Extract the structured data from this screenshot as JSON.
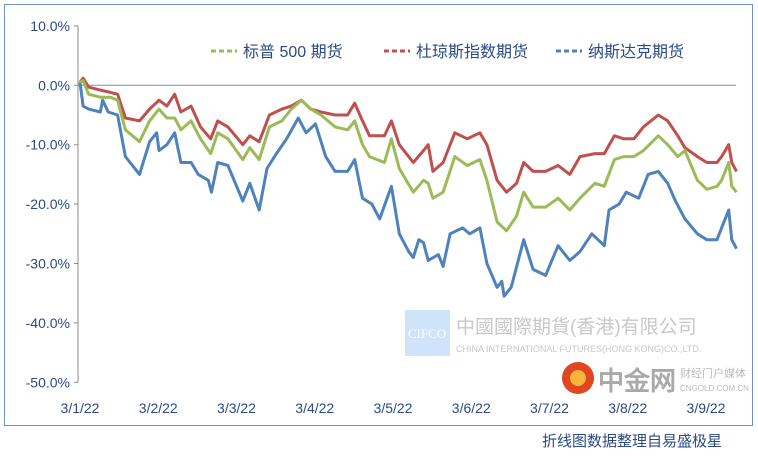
{
  "chart_data": {
    "type": "line",
    "title": "",
    "xlabel": "",
    "ylabel": "",
    "ylim": [
      -50,
      10
    ],
    "yticks": [
      "10.0%",
      "0.0%",
      "-10.0%",
      "-20.0%",
      "-30.0%",
      "-40.0%",
      "-50.0%"
    ],
    "ytick_values": [
      10,
      0,
      -10,
      -20,
      -30,
      -40,
      -50
    ],
    "xticks": [
      "3/1/22",
      "3/2/22",
      "3/3/22",
      "3/4/22",
      "3/5/22",
      "3/6/22",
      "3/7/22",
      "3/8/22",
      "3/9/22"
    ],
    "x_unit": "months since 3/1/22",
    "legend_position": "top-right",
    "series": [
      {
        "name": "标普 500 期货",
        "color": "#9BBB59",
        "x": [
          0,
          0.04,
          0.11,
          0.26,
          0.39,
          0.48,
          0.58,
          0.76,
          0.89,
          1.01,
          1.11,
          1.21,
          1.29,
          1.42,
          1.54,
          1.67,
          1.76,
          1.89,
          2.08,
          2.17,
          2.29,
          2.42,
          2.58,
          2.7,
          2.83,
          2.95,
          3.08,
          3.26,
          3.42,
          3.51,
          3.61,
          3.7,
          3.89,
          3.98,
          4.08,
          4.26,
          4.39,
          4.45,
          4.51,
          4.64,
          4.79,
          4.95,
          5.11,
          5.2,
          5.33,
          5.45,
          5.58,
          5.67,
          5.79,
          5.95,
          6.11,
          6.26,
          6.39,
          6.58,
          6.7,
          6.83,
          6.95,
          7.08,
          7.2,
          7.39,
          7.51,
          7.64,
          7.73,
          7.89,
          8.01,
          8.14,
          8.2,
          8.29,
          8.33,
          8.39
        ],
        "values": [
          0.5,
          0.8,
          -1.5,
          -2,
          -2,
          -2.5,
          -7.5,
          -9.5,
          -6,
          -4,
          -5.5,
          -5.5,
          -7.5,
          -6,
          -9,
          -11.5,
          -8,
          -9,
          -12.5,
          -10.5,
          -12.5,
          -7,
          -6,
          -4,
          -2.5,
          -4,
          -5,
          -7,
          -7.5,
          -6,
          -10,
          -12,
          -13,
          -9,
          -14,
          -18,
          -16,
          -16.5,
          -19,
          -18,
          -12,
          -13.5,
          -12.5,
          -16,
          -23,
          -24.5,
          -22,
          -18,
          -20.5,
          -20.5,
          -19,
          -21,
          -19,
          -16.5,
          -17,
          -12.5,
          -12,
          -12,
          -11,
          -8.5,
          -10,
          -12,
          -11,
          -16,
          -17.5,
          -17,
          -16,
          -13,
          -17,
          -18
        ]
      },
      {
        "name": "杜琼斯指数期货",
        "color": "#C0504D",
        "x": [
          0,
          0.04,
          0.11,
          0.26,
          0.39,
          0.48,
          0.58,
          0.76,
          0.89,
          1.01,
          1.11,
          1.21,
          1.29,
          1.42,
          1.54,
          1.67,
          1.76,
          1.89,
          2.08,
          2.17,
          2.29,
          2.42,
          2.58,
          2.7,
          2.83,
          2.95,
          3.08,
          3.26,
          3.42,
          3.51,
          3.61,
          3.7,
          3.89,
          3.98,
          4.08,
          4.26,
          4.39,
          4.45,
          4.51,
          4.64,
          4.79,
          4.95,
          5.11,
          5.2,
          5.33,
          5.45,
          5.58,
          5.67,
          5.79,
          5.95,
          6.11,
          6.26,
          6.39,
          6.58,
          6.7,
          6.83,
          6.95,
          7.08,
          7.2,
          7.39,
          7.51,
          7.64,
          7.73,
          7.89,
          8.01,
          8.14,
          8.2,
          8.29,
          8.33,
          8.39
        ],
        "values": [
          0.5,
          1.2,
          -0.3,
          -0.8,
          -1.2,
          -1.5,
          -5.5,
          -6,
          -4,
          -2.5,
          -3.5,
          -1.5,
          -4.5,
          -3.5,
          -7,
          -9,
          -6,
          -7,
          -10,
          -8.5,
          -9.5,
          -5,
          -4,
          -3.5,
          -2.5,
          -4,
          -4.5,
          -5,
          -5,
          -3,
          -6,
          -8.5,
          -8.5,
          -6,
          -10,
          -13,
          -11,
          -10,
          -14.5,
          -13,
          -8,
          -9,
          -8,
          -10,
          -16,
          -18,
          -16.5,
          -13,
          -14.5,
          -14.5,
          -13.5,
          -15,
          -12,
          -11.5,
          -11.5,
          -8.5,
          -9,
          -9,
          -7,
          -5,
          -6,
          -8.5,
          -10.5,
          -12,
          -13,
          -13,
          -12,
          -10,
          -13,
          -14.5
        ]
      },
      {
        "name": "纳斯达克期货",
        "color": "#4F81BD",
        "x": [
          0,
          0.04,
          0.11,
          0.26,
          0.29,
          0.36,
          0.48,
          0.58,
          0.76,
          0.89,
          0.98,
          1.01,
          1.11,
          1.21,
          1.29,
          1.42,
          1.51,
          1.64,
          1.68,
          1.76,
          1.89,
          2.08,
          2.17,
          2.29,
          2.39,
          2.51,
          2.64,
          2.79,
          2.89,
          3.01,
          3.14,
          3.26,
          3.42,
          3.51,
          3.61,
          3.73,
          3.83,
          3.98,
          4.08,
          4.2,
          4.26,
          4.33,
          4.39,
          4.45,
          4.58,
          4.64,
          4.73,
          4.89,
          4.98,
          5.11,
          5.2,
          5.33,
          5.39,
          5.42,
          5.51,
          5.67,
          5.79,
          5.95,
          6.11,
          6.26,
          6.39,
          6.54,
          6.7,
          6.76,
          6.89,
          6.98,
          7.14,
          7.26,
          7.39,
          7.51,
          7.61,
          7.73,
          7.89,
          8.01,
          8.14,
          8.2,
          8.29,
          8.33,
          8.39
        ],
        "values": [
          0.5,
          -3.5,
          -4,
          -4.5,
          -2.5,
          -4.5,
          -5,
          -12,
          -15,
          -9.5,
          -8,
          -11,
          -10,
          -8,
          -13,
          -13,
          -15,
          -16,
          -18,
          -13,
          -13.5,
          -19.5,
          -16.5,
          -21,
          -14,
          -11.5,
          -9,
          -5.5,
          -8,
          -6.5,
          -12,
          -14.5,
          -14.5,
          -12.5,
          -19,
          -20,
          -22.5,
          -17,
          -25,
          -28,
          -29,
          -26,
          -26.5,
          -29.5,
          -28.5,
          -30.5,
          -25,
          -24,
          -25,
          -24,
          -30,
          -34,
          -33,
          -35.5,
          -34,
          -26,
          -31,
          -32,
          -27,
          -29.5,
          -28,
          -25,
          -27,
          -21,
          -20,
          -18,
          -19,
          -15,
          -14.5,
          -16.5,
          -19.5,
          -22.5,
          -25,
          -26,
          -26,
          -24,
          -21,
          -26,
          -27.5
        ]
      }
    ]
  },
  "watermarks": {
    "cifco_logo": "CIFCO",
    "cifco_cn": "中國國際期貨(香港)有限公司",
    "cifco_en": "CHINA INTERNATIONAL FUTURES(HONG KONG)CO.,LTD.",
    "cngold_cn": "中金网",
    "cngold_url": "CNGOLD.COM.CN",
    "cngold_tag": "财经门户媒体"
  },
  "footer": "折线图数据整理自易盛极星"
}
